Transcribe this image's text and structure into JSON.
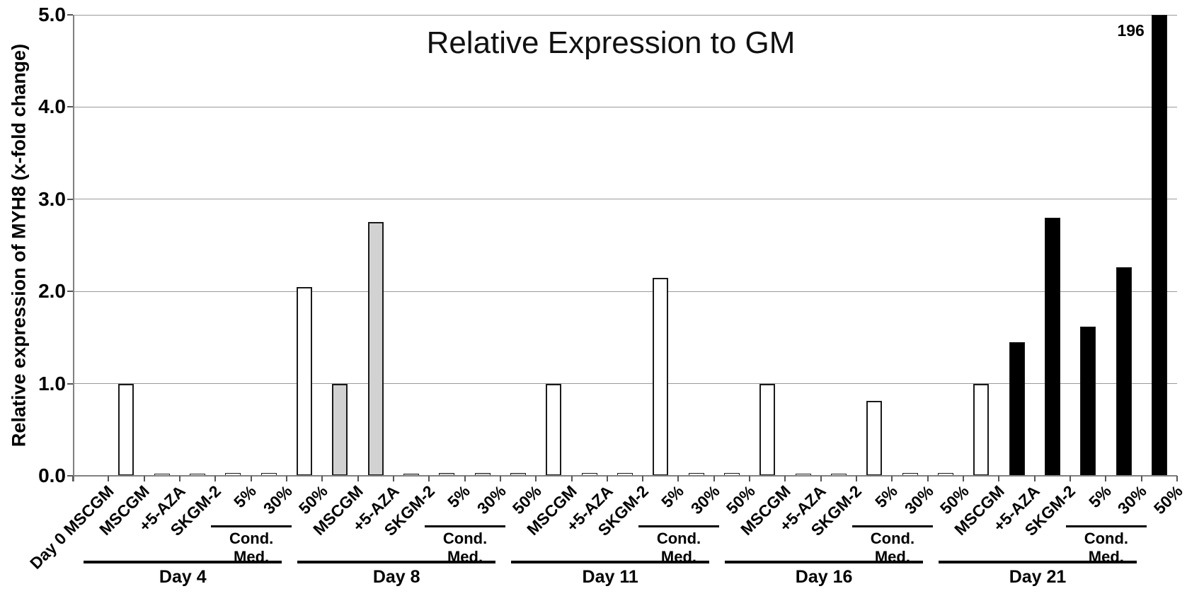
{
  "chart_data": {
    "type": "bar",
    "title": "Relative Expression to GM",
    "ylabel": "Relative expression of MYH8 (x-fold change)",
    "ylim": [
      0,
      5.0
    ],
    "yticks": [
      "0.0",
      "1.0",
      "2.0",
      "3.0",
      "4.0",
      "5.0"
    ],
    "grid": true,
    "legend": "none",
    "categories_per_group": [
      "MSCGM",
      "+5-AZA",
      "SKGM-2",
      "5%",
      "30%",
      "50%"
    ],
    "cond_med_label": "Cond. Med.",
    "lead_category": {
      "label": "Day 0 MSCGM",
      "value": 0
    },
    "groups": [
      {
        "day": "Day 4",
        "values": [
          1.0,
          0.02,
          0.02,
          0.03,
          0.03,
          2.05
        ],
        "fills": [
          "white",
          "white",
          "white",
          "white",
          "white",
          "white"
        ]
      },
      {
        "day": "Day 8",
        "values": [
          1.0,
          2.75,
          0.02,
          0.03,
          0.03,
          0.03
        ],
        "fills": [
          "gray",
          "gray",
          "gray",
          "gray",
          "gray",
          "gray"
        ]
      },
      {
        "day": "Day 11",
        "values": [
          1.0,
          0.03,
          0.03,
          2.15,
          0.03,
          0.03
        ],
        "fills": [
          "white",
          "white",
          "white",
          "white",
          "white",
          "white"
        ]
      },
      {
        "day": "Day 16",
        "values": [
          1.0,
          0.02,
          0.02,
          0.81,
          0.03,
          0.03
        ],
        "fills": [
          "white",
          "white",
          "white",
          "white",
          "white",
          "white"
        ]
      },
      {
        "day": "Day 21",
        "values": [
          1.0,
          1.45,
          2.8,
          1.62,
          2.26,
          5.0
        ],
        "fills": [
          "white",
          "black",
          "black",
          "black",
          "black",
          "black"
        ]
      }
    ],
    "annotation": {
      "text": "196",
      "applies_to": {
        "group": "Day 21",
        "category": "50%"
      },
      "meaning": "bar clipped at axis maximum 5.0"
    },
    "colors": {
      "white": "#ffffff",
      "gray": "#d2d2d2",
      "black": "#000000",
      "grid": "#9a9a9a",
      "axis": "#808080",
      "bar_border": "#1a1a1a"
    }
  }
}
